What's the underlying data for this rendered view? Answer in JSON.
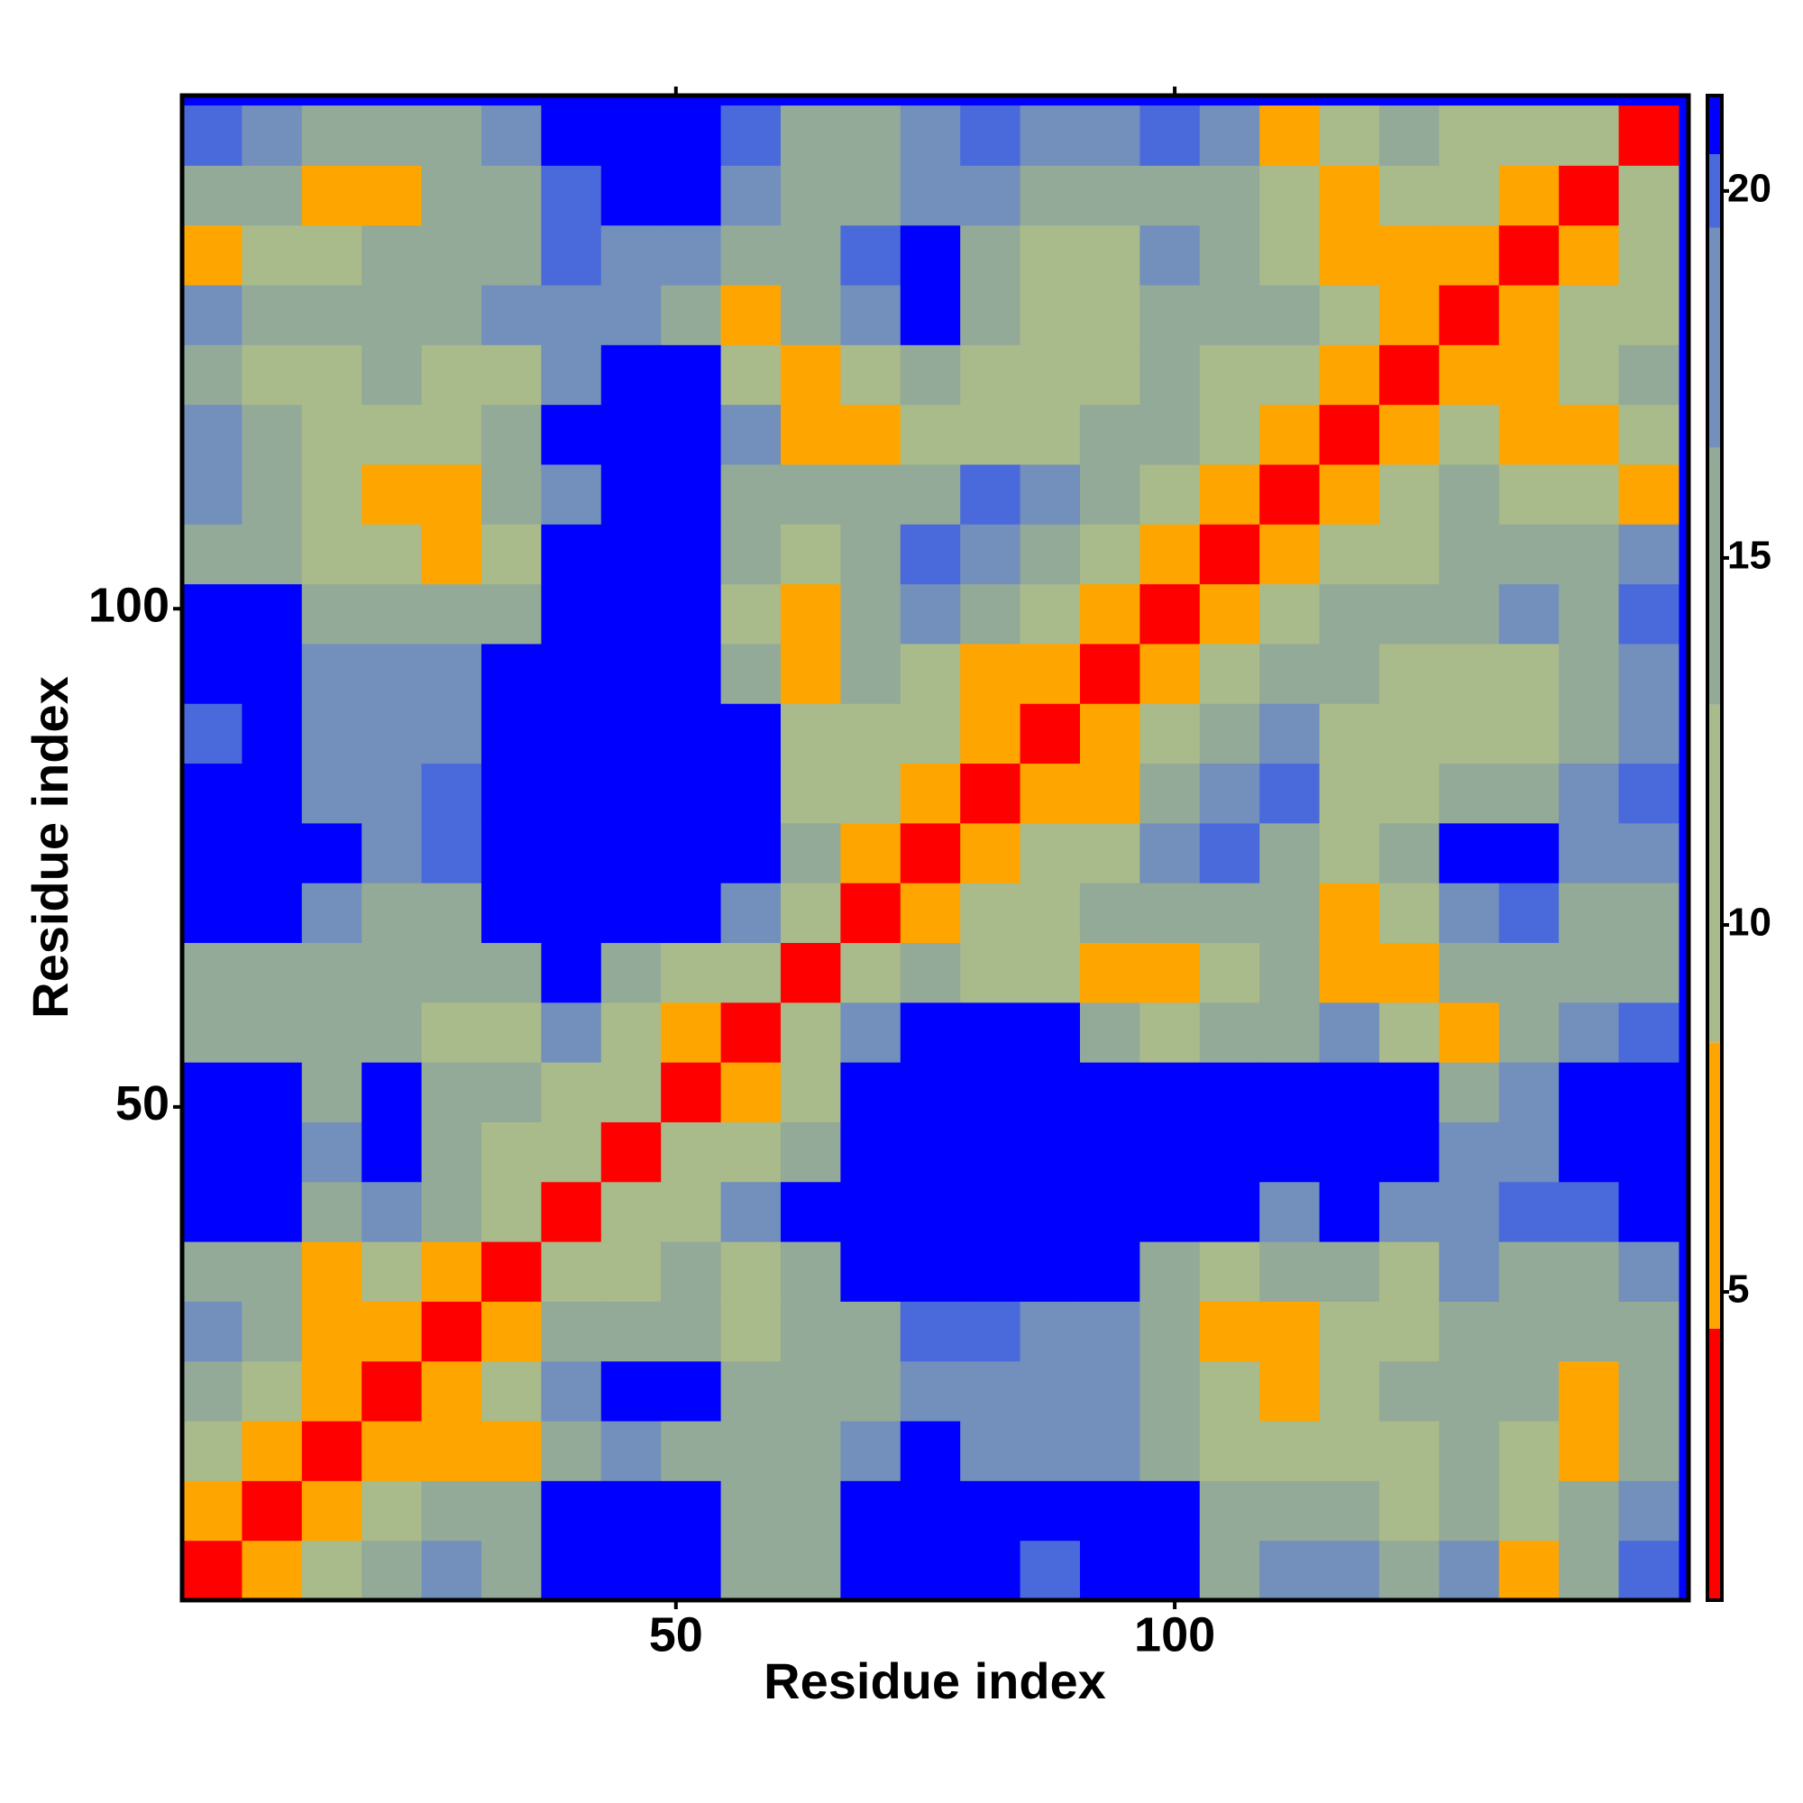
{
  "chart_data": {
    "type": "heatmap",
    "x_label": "Residue index",
    "y_label": "Residue index",
    "symmetric": true,
    "bins": [
      0.5,
      6.5,
      12.5,
      18.5,
      24.5,
      30.5,
      36.5,
      42.5,
      48.5,
      54.5,
      60.5,
      66.5,
      72.5,
      78.5,
      84.5,
      90.5,
      96.5,
      102.5,
      108.5,
      114.5,
      120.5,
      126.5,
      132.5,
      138.5,
      144.5,
      150.5
    ],
    "values": [
      [
        3
      ],
      [
        8,
        3
      ],
      [
        12,
        6,
        3
      ],
      [
        14,
        12,
        8,
        3
      ],
      [
        17,
        14,
        6,
        5,
        3
      ],
      [
        13,
        13,
        6,
        10,
        8,
        3
      ],
      [
        21,
        21,
        16,
        19,
        14,
        10,
        3
      ],
      [
        21,
        21,
        18,
        21,
        15,
        12,
        9,
        3
      ],
      [
        21,
        21,
        16,
        21,
        14,
        13,
        12,
        10,
        3
      ],
      [
        15,
        16,
        15,
        13,
        12,
        12,
        17,
        11,
        7,
        3
      ],
      [
        14,
        14,
        14,
        14,
        13,
        16,
        21,
        13,
        10,
        10,
        3
      ],
      [
        21,
        21,
        18,
        15,
        16,
        21,
        21,
        21,
        21,
        17,
        11,
        3
      ],
      [
        21,
        21,
        21,
        17,
        20,
        21,
        21,
        21,
        21,
        21,
        14,
        7,
        3
      ],
      [
        21,
        21,
        19,
        19,
        20,
        21,
        21,
        21,
        21,
        21,
        9,
        10,
        6,
        3
      ],
      [
        20,
        21,
        19,
        19,
        19,
        21,
        21,
        21,
        21,
        21,
        9,
        12,
        9,
        6,
        3
      ],
      [
        21,
        21,
        19,
        19,
        19,
        21,
        21,
        21,
        21,
        13,
        7,
        13,
        11,
        8,
        5,
        3
      ],
      [
        21,
        21,
        16,
        14,
        14,
        16,
        21,
        21,
        21,
        12,
        5,
        14,
        18,
        14,
        10,
        7,
        3
      ],
      [
        16,
        15,
        12,
        10,
        6,
        9,
        21,
        21,
        21,
        13,
        12,
        15,
        20,
        17,
        14,
        11,
        7,
        3
      ],
      [
        17,
        14,
        12,
        6,
        8,
        13,
        18,
        21,
        21,
        15,
        14,
        13,
        14,
        20,
        19,
        14,
        11,
        8,
        3
      ],
      [
        18,
        16,
        12,
        11,
        12,
        15,
        21,
        21,
        21,
        17,
        8,
        5,
        11,
        10,
        12,
        13,
        13,
        12,
        8,
        3
      ],
      [
        14,
        12,
        12,
        13,
        11,
        9,
        17,
        21,
        21,
        11,
        5,
        12,
        16,
        11,
        9,
        11,
        15,
        12,
        12,
        8,
        3
      ],
      [
        19,
        16,
        16,
        14,
        15,
        17,
        19,
        18,
        13,
        6,
        13,
        19,
        21,
        16,
        9,
        12,
        15,
        15,
        13,
        10,
        8,
        3
      ],
      [
        6,
        12,
        12,
        14,
        14,
        16,
        20,
        18,
        19,
        15,
        16,
        20,
        21,
        15,
        9,
        12,
        17,
        14,
        10,
        8,
        5,
        8,
        3
      ],
      [
        14,
        13,
        7,
        6,
        14,
        15,
        20,
        21,
        21,
        19,
        14,
        16,
        19,
        18,
        14,
        15,
        16,
        14,
        11,
        5,
        11,
        10,
        8,
        3
      ],
      [
        20,
        17,
        15,
        13,
        16,
        19,
        21,
        21,
        21,
        20,
        14,
        16,
        19,
        20,
        18,
        17,
        20,
        18,
        6,
        10,
        14,
        12,
        11,
        9,
        3
      ]
    ],
    "xlim": [
      0.5,
      151.5
    ],
    "ylim": [
      0.5,
      151.5
    ],
    "xticks": [
      50,
      100
    ],
    "yticks": [
      50,
      100
    ],
    "colorbar": {
      "lim": [
        0.8,
        21.3
      ],
      "ticks": [
        5,
        10,
        15,
        20
      ],
      "bands": [
        {
          "range": [
            0.8,
            4.5
          ],
          "color": "#ff0000"
        },
        {
          "range": [
            4.5,
            8.4
          ],
          "color": "#ffa500"
        },
        {
          "range": [
            8.4,
            13
          ],
          "color": "#a9ba8b"
        },
        {
          "range": [
            13,
            16.5
          ],
          "color": "#93aa98"
        },
        {
          "range": [
            16.5,
            19.5
          ],
          "color": "#7290bb"
        },
        {
          "range": [
            19.5,
            20.5
          ],
          "color": "#4a6adb"
        },
        {
          "range": [
            20.5,
            21.3
          ],
          "color": "#0000ff"
        }
      ]
    }
  }
}
